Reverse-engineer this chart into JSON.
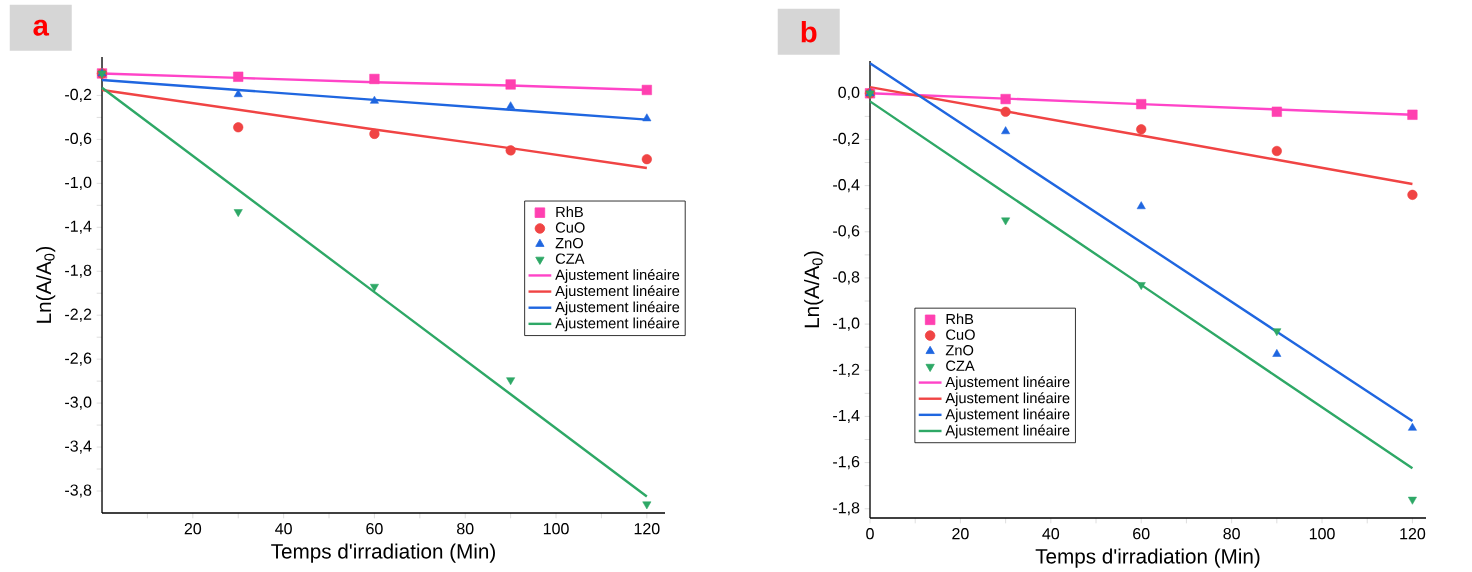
{
  "chart_data": [
    {
      "type": "scatter",
      "title": "a",
      "xlabel": "Temps d'irradiation (Min)",
      "ylabel": "Ln(A/A$_{0}$)",
      "legend": "right",
      "xlim": [
        0,
        124
      ],
      "ylim": [
        -4.0,
        0.15
      ],
      "xticks": [
        {
          "value": 10,
          "label": null
        },
        20,
        {
          "value": 30,
          "label": null
        },
        40,
        {
          "value": 50,
          "label": null
        },
        60,
        {
          "value": 70,
          "label": null
        },
        80,
        {
          "value": 90,
          "label": null
        },
        100,
        {
          "value": 110,
          "label": null
        },
        120
      ],
      "yticks": [
        {
          "value": 0,
          "label": null
        },
        {
          "value": -0.2,
          "label": "-0,2"
        },
        {
          "value": -0.4,
          "label": null
        },
        {
          "value": -0.6,
          "label": "-0,6"
        },
        {
          "value": -0.8,
          "label": null
        },
        {
          "value": -1.0,
          "label": "-1,0"
        },
        {
          "value": -1.2,
          "label": null
        },
        {
          "value": -1.4,
          "label": "-1,4"
        },
        {
          "value": -1.6,
          "label": null
        },
        {
          "value": -1.8,
          "label": "-1,8"
        },
        {
          "value": -2.0,
          "label": null
        },
        {
          "value": -2.2,
          "label": "-2,2"
        },
        {
          "value": -2.4,
          "label": null
        },
        {
          "value": -2.6,
          "label": "-2,6"
        },
        {
          "value": -2.8,
          "label": null
        },
        {
          "value": -3.0,
          "label": "-3,0"
        },
        {
          "value": -3.2,
          "label": null
        },
        {
          "value": -3.4,
          "label": "-3,4"
        },
        {
          "value": -3.6,
          "label": null
        },
        {
          "value": -3.8,
          "label": "-3,8"
        }
      ],
      "x": [
        0,
        30,
        60,
        90,
        120
      ],
      "series": [
        {
          "name": "RhB",
          "marker": "square",
          "color": "#ff40b0",
          "values": [
            0,
            -0.03,
            -0.05,
            -0.1,
            -0.15
          ]
        },
        {
          "name": "CuO",
          "marker": "circle",
          "color": "#f04444",
          "values": [
            0,
            -0.49,
            -0.55,
            -0.7,
            -0.78
          ]
        },
        {
          "name": "ZnO",
          "marker": "triangle",
          "color": "#1f66e0",
          "values": [
            0,
            -0.19,
            -0.25,
            -0.3,
            -0.41
          ]
        },
        {
          "name": "CZA",
          "marker": "triangle-down",
          "color": "#2ea866",
          "values": [
            0,
            -1.26,
            -1.94,
            -2.79,
            -3.92
          ]
        },
        {
          "name": "Ajustement linéaire",
          "type": "line",
          "marker": "none",
          "color": "#ff44c8",
          "values": [
            0.0,
            -0.04,
            -0.08,
            -0.11,
            -0.15
          ]
        },
        {
          "name": "Ajustement linéaire",
          "type": "line",
          "marker": "none",
          "color": "#f04444",
          "values": [
            -0.15,
            -0.33,
            -0.51,
            -0.68,
            -0.86
          ]
        },
        {
          "name": "Ajustement linéaire",
          "type": "line",
          "marker": "none",
          "color": "#1f66e0",
          "values": [
            -0.06,
            -0.15,
            -0.24,
            -0.33,
            -0.42
          ]
        },
        {
          "name": "Ajustement linéaire",
          "type": "line",
          "marker": "none",
          "color": "#2ea866",
          "values": [
            -0.13,
            -1.06,
            -1.99,
            -2.92,
            -3.85
          ]
        }
      ]
    },
    {
      "type": "scatter",
      "title": "b",
      "xlabel": "Temps d'irradiation (Min)",
      "ylabel": "Ln(A/A$_{0}$)",
      "legend": "bottom left",
      "xlim": [
        0,
        123
      ],
      "ylim": [
        -1.84,
        0.14
      ],
      "xticks": [
        0,
        {
          "value": 10,
          "label": null
        },
        20,
        {
          "value": 30,
          "label": null
        },
        40,
        {
          "value": 50,
          "label": null
        },
        60,
        {
          "value": 70,
          "label": null
        },
        80,
        {
          "value": 90,
          "label": null
        },
        100,
        {
          "value": 110,
          "label": null
        },
        120
      ],
      "yticks": [
        {
          "value": 0.0,
          "label": "0,0"
        },
        {
          "value": -0.1,
          "label": null
        },
        {
          "value": -0.2,
          "label": "-0,2"
        },
        {
          "value": -0.3,
          "label": null
        },
        {
          "value": -0.4,
          "label": "-0,4"
        },
        {
          "value": -0.5,
          "label": null
        },
        {
          "value": -0.6,
          "label": "-0,6"
        },
        {
          "value": -0.7,
          "label": null
        },
        {
          "value": -0.8,
          "label": "-0,8"
        },
        {
          "value": -0.9,
          "label": null
        },
        {
          "value": -1.0,
          "label": "-1,0"
        },
        {
          "value": -1.1,
          "label": null
        },
        {
          "value": -1.2,
          "label": "-1,2"
        },
        {
          "value": -1.3,
          "label": null
        },
        {
          "value": -1.4,
          "label": "-1,4"
        },
        {
          "value": -1.5,
          "label": null
        },
        {
          "value": -1.6,
          "label": "-1,6"
        },
        {
          "value": -1.7,
          "label": null
        },
        {
          "value": -1.8,
          "label": "-1,8"
        }
      ],
      "x": [
        0,
        30,
        60,
        90,
        120
      ],
      "series": [
        {
          "name": "RhB",
          "marker": "square",
          "color": "#ff40b0",
          "values": [
            0,
            -0.025,
            -0.047,
            -0.08,
            -0.093
          ]
        },
        {
          "name": "CuO",
          "marker": "circle",
          "color": "#f04444",
          "values": [
            0,
            -0.08,
            -0.156,
            -0.25,
            -0.44
          ]
        },
        {
          "name": "ZnO",
          "marker": "triangle",
          "color": "#1f66e0",
          "values": [
            0,
            -0.165,
            -0.49,
            -1.13,
            -1.45
          ]
        },
        {
          "name": "CZA",
          "marker": "triangle-down",
          "color": "#2ea866",
          "values": [
            0,
            -0.55,
            -0.83,
            -1.03,
            -1.76
          ]
        },
        {
          "name": "Ajustement linéaire",
          "type": "line",
          "marker": "none",
          "color": "#ff44c8",
          "values": [
            0.0,
            -0.023,
            -0.047,
            -0.07,
            -0.093
          ]
        },
        {
          "name": "Ajustement linéaire",
          "type": "line",
          "marker": "none",
          "color": "#f04444",
          "values": [
            0.027,
            -0.078,
            -0.183,
            -0.288,
            -0.393
          ]
        },
        {
          "name": "Ajustement linéaire",
          "type": "line",
          "marker": "none",
          "color": "#1f66e0",
          "values": [
            0.13,
            -0.258,
            -0.645,
            -1.033,
            -1.42
          ]
        },
        {
          "name": "Ajustement linéaire",
          "type": "line",
          "marker": "none",
          "color": "#2ea866",
          "values": [
            -0.035,
            -0.433,
            -0.83,
            -1.228,
            -1.625
          ]
        }
      ]
    }
  ]
}
